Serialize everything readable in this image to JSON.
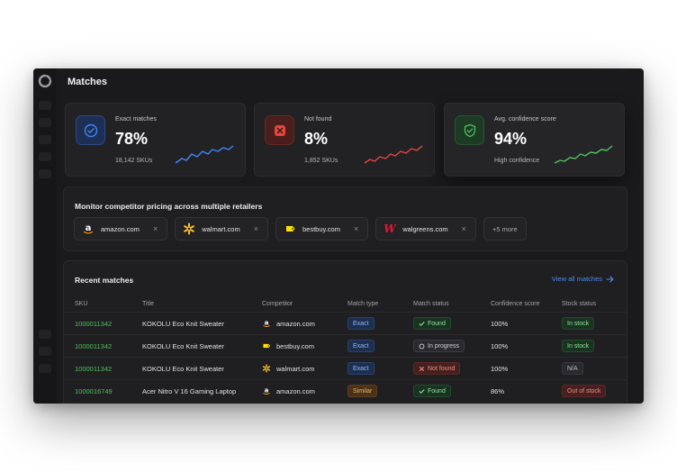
{
  "page": {
    "title": "Matches"
  },
  "colors": {
    "accent_blue": "#4a8cf0",
    "success": "#4fbf5c",
    "danger": "#e2473d"
  },
  "stats": [
    {
      "label": "Exact matches",
      "value": "78%",
      "sub": "18,142 SKUs",
      "icon": "check-icon",
      "color": "#2f7cf6"
    },
    {
      "label": "Not found",
      "value": "8%",
      "sub": "1,852 SKUs",
      "icon": "close-icon",
      "color": "#e2473d"
    },
    {
      "label": "Avg. confidence score",
      "value": "94%",
      "sub": "High confidence",
      "icon": "shield-check-icon",
      "color": "#46b05a"
    }
  ],
  "retailers": {
    "title": "Monitor competitor pricing across multiple retailers",
    "chips": [
      {
        "name": "amazon.com",
        "icon": "amazon-logo-icon"
      },
      {
        "name": "walmart.com",
        "icon": "walmart-spark-icon"
      },
      {
        "name": "bestbuy.com",
        "icon": "bestbuy-tag-icon"
      },
      {
        "name": "walgreens.com",
        "icon": "walgreens-logo-icon"
      }
    ],
    "remove_glyph": "×",
    "more": "+5 more"
  },
  "matches": {
    "title": "Recent matches",
    "view_all": "View all matches",
    "columns": [
      "SKU",
      "Title",
      "Competitor",
      "Match type",
      "Match status",
      "Confidence score",
      "Stock status"
    ],
    "rows": [
      {
        "sku": "1000011342",
        "title": "KOKOLU Eco Knit Sweater",
        "competitor": "amazon.com",
        "match_type": "Exact",
        "match_status": "Found",
        "confidence": "100%",
        "stock": "In stock"
      },
      {
        "sku": "1000011342",
        "title": "KOKOLU Eco Knit Sweater",
        "competitor": "bestbuy.com",
        "match_type": "Exact",
        "match_status": "In progress",
        "confidence": "100%",
        "stock": "In stock"
      },
      {
        "sku": "1000011342",
        "title": "KOKOLU Eco Knit Sweater",
        "competitor": "walmart.com",
        "match_type": "Exact",
        "match_status": "Not found",
        "confidence": "100%",
        "stock": "N/A"
      },
      {
        "sku": "1000016749",
        "title": "Acer Nitro V 16 Gaming Laptop",
        "competitor": "amazon.com",
        "match_type": "Similar",
        "match_status": "Found",
        "confidence": "86%",
        "stock": "Out of stock"
      }
    ]
  }
}
